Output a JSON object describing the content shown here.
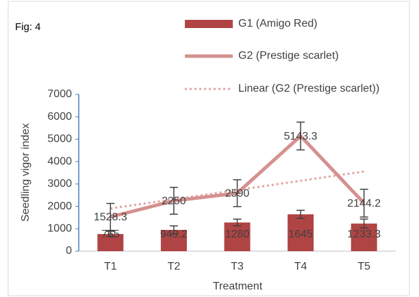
{
  "chart_data": {
    "type": "bar_line",
    "figure_label": "Fig: 4",
    "x_label": "Treatment",
    "y_label": "Seedling vigor index",
    "categories": [
      "T1",
      "T2",
      "T3",
      "T4",
      "T5"
    ],
    "ylim": [
      0,
      7000
    ],
    "yticks": [
      0,
      1000,
      2000,
      3000,
      4000,
      5000,
      6000,
      7000
    ],
    "series": [
      {
        "name": "G1 (Amigo Red)",
        "type": "bar",
        "color": "#b04444",
        "values": [
          765,
          949.2,
          1280,
          1645,
          1233.3
        ],
        "errors": [
          120,
          180,
          150,
          180,
          200
        ]
      },
      {
        "name": "G2 (Prestige scarlet)",
        "type": "line",
        "color": "#d4918f",
        "values": [
          1528.3,
          2250,
          2590,
          5143.3,
          2144.2
        ],
        "errors": [
          600,
          600,
          600,
          620,
          620
        ]
      },
      {
        "name": "Linear (G2 (Prestige scarlet))",
        "type": "trendline",
        "color": "#e2a3a1",
        "values": [
          1906.2,
          2318.7,
          2731.2,
          3143.7,
          3556.2
        ]
      }
    ]
  }
}
